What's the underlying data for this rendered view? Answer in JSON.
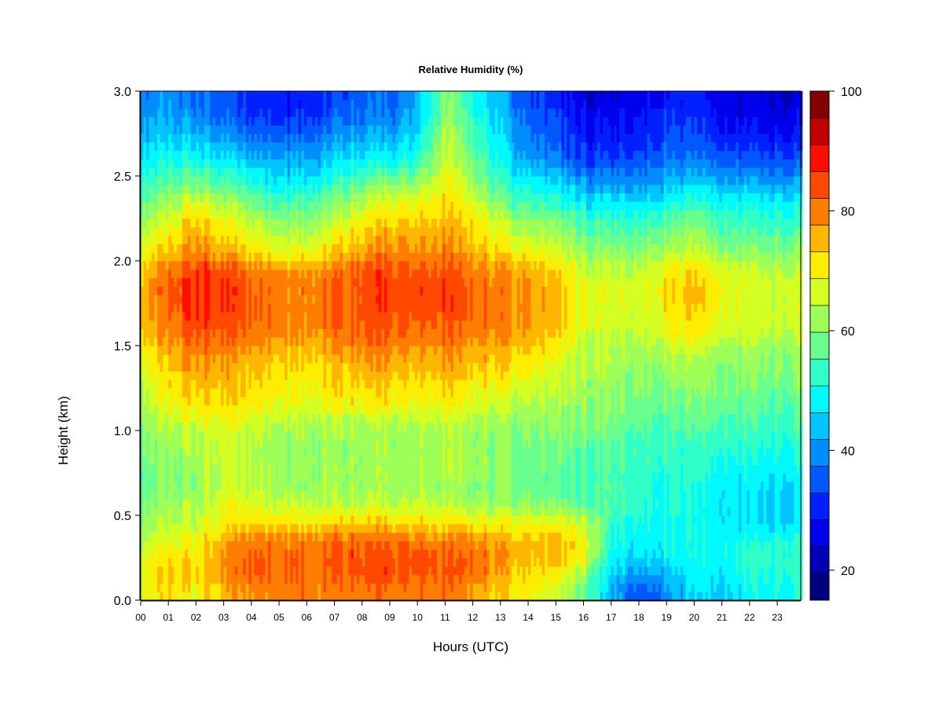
{
  "chart_data": {
    "type": "heatmap",
    "title": "Relative Humidity (%)",
    "xlabel": "Hours (UTC)",
    "ylabel": "Height (km)",
    "x_ticks": [
      "00",
      "01",
      "02",
      "03",
      "04",
      "05",
      "06",
      "07",
      "08",
      "09",
      "10",
      "11",
      "12",
      "13",
      "14",
      "15",
      "16",
      "17",
      "18",
      "19",
      "20",
      "21",
      "22",
      "23"
    ],
    "y_ticks": [
      "0.0",
      "0.5",
      "1.0",
      "1.5",
      "2.0",
      "2.5",
      "3.0"
    ],
    "xlim": [
      0,
      23.85
    ],
    "ylim": [
      0,
      3.0
    ],
    "colorbar": {
      "range": [
        15,
        100
      ],
      "ticks": [
        "20",
        "40",
        "60",
        "80",
        "100"
      ],
      "colors": [
        "#00007f",
        "#0000b5",
        "#0000ec",
        "#0020ff",
        "#0058ff",
        "#008eff",
        "#00c4ff",
        "#00f8ff",
        "#30ffc8",
        "#68ff8f",
        "#9eff58",
        "#d4ff22",
        "#ffed00",
        "#ffb600",
        "#ff7d00",
        "#ff4800",
        "#fd0e00",
        "#c30000",
        "#830000"
      ]
    },
    "heights_km": [
      0.05,
      0.15,
      0.25,
      0.35,
      0.45,
      0.55,
      0.65,
      0.75,
      0.85,
      0.95,
      1.05,
      1.15,
      1.25,
      1.35,
      1.45,
      1.55,
      1.65,
      1.75,
      1.85,
      1.95,
      2.05,
      2.15,
      2.25,
      2.35,
      2.45,
      2.55,
      2.65,
      2.75,
      2.85,
      2.95
    ],
    "hours": [
      0,
      1,
      2,
      3,
      4,
      5,
      6,
      7,
      8,
      9,
      10,
      11,
      12,
      13,
      14,
      15,
      16,
      17,
      18,
      19,
      20,
      21,
      22,
      23
    ],
    "rh": [
      [
        68,
        72,
        70,
        74,
        78,
        80,
        80,
        80,
        80,
        80,
        80,
        80,
        78,
        72,
        70,
        66,
        58,
        42,
        34,
        40,
        46,
        46,
        48,
        50
      ],
      [
        70,
        74,
        74,
        78,
        82,
        82,
        82,
        82,
        84,
        84,
        82,
        84,
        82,
        76,
        72,
        70,
        62,
        44,
        40,
        44,
        48,
        48,
        50,
        52
      ],
      [
        68,
        72,
        72,
        78,
        82,
        82,
        82,
        84,
        84,
        84,
        84,
        84,
        82,
        78,
        74,
        74,
        70,
        48,
        46,
        48,
        50,
        50,
        52,
        52
      ],
      [
        64,
        68,
        70,
        76,
        80,
        80,
        80,
        82,
        82,
        82,
        80,
        80,
        80,
        76,
        74,
        74,
        70,
        50,
        48,
        50,
        50,
        50,
        50,
        52
      ],
      [
        62,
        64,
        66,
        70,
        72,
        72,
        72,
        74,
        74,
        74,
        72,
        72,
        72,
        70,
        70,
        70,
        66,
        52,
        50,
        50,
        50,
        48,
        46,
        46
      ],
      [
        60,
        62,
        64,
        68,
        68,
        66,
        66,
        66,
        66,
        66,
        66,
        66,
        64,
        62,
        62,
        60,
        58,
        54,
        52,
        52,
        50,
        48,
        46,
        46
      ],
      [
        58,
        60,
        62,
        66,
        64,
        62,
        62,
        62,
        62,
        62,
        62,
        62,
        60,
        60,
        58,
        56,
        54,
        54,
        52,
        52,
        50,
        48,
        46,
        46
      ],
      [
        58,
        60,
        62,
        66,
        64,
        62,
        62,
        62,
        62,
        62,
        62,
        64,
        62,
        60,
        58,
        56,
        54,
        54,
        52,
        52,
        52,
        50,
        48,
        48
      ],
      [
        60,
        60,
        64,
        66,
        64,
        62,
        62,
        62,
        62,
        62,
        62,
        64,
        62,
        60,
        58,
        58,
        56,
        54,
        54,
        54,
        52,
        52,
        50,
        50
      ],
      [
        60,
        62,
        64,
        66,
        64,
        62,
        62,
        62,
        62,
        62,
        62,
        64,
        62,
        60,
        60,
        58,
        58,
        56,
        54,
        54,
        54,
        54,
        52,
        52
      ],
      [
        62,
        64,
        68,
        68,
        66,
        64,
        64,
        64,
        64,
        64,
        64,
        66,
        64,
        62,
        60,
        60,
        60,
        58,
        56,
        56,
        56,
        56,
        54,
        54
      ],
      [
        64,
        68,
        72,
        72,
        70,
        68,
        68,
        70,
        70,
        70,
        68,
        70,
        68,
        66,
        64,
        62,
        62,
        60,
        58,
        58,
        58,
        58,
        56,
        56
      ],
      [
        66,
        70,
        74,
        74,
        72,
        70,
        70,
        72,
        72,
        72,
        70,
        72,
        70,
        68,
        66,
        64,
        62,
        60,
        60,
        60,
        60,
        60,
        58,
        58
      ],
      [
        68,
        72,
        78,
        76,
        74,
        72,
        72,
        74,
        76,
        76,
        74,
        76,
        74,
        72,
        70,
        66,
        64,
        62,
        60,
        62,
        62,
        60,
        60,
        60
      ],
      [
        70,
        74,
        80,
        78,
        76,
        74,
        74,
        76,
        78,
        78,
        76,
        78,
        76,
        74,
        72,
        68,
        64,
        62,
        62,
        64,
        64,
        62,
        60,
        60
      ],
      [
        74,
        78,
        84,
        82,
        80,
        78,
        78,
        80,
        82,
        82,
        80,
        82,
        80,
        78,
        76,
        72,
        66,
        64,
        64,
        68,
        70,
        66,
        64,
        64
      ],
      [
        76,
        80,
        86,
        84,
        82,
        80,
        80,
        82,
        84,
        84,
        82,
        84,
        82,
        80,
        78,
        74,
        68,
        66,
        66,
        70,
        72,
        68,
        66,
        66
      ],
      [
        76,
        82,
        88,
        86,
        82,
        80,
        80,
        82,
        84,
        86,
        84,
        86,
        82,
        80,
        78,
        74,
        68,
        66,
        66,
        72,
        74,
        70,
        66,
        66
      ],
      [
        76,
        82,
        88,
        86,
        82,
        80,
        80,
        82,
        84,
        86,
        84,
        86,
        82,
        80,
        78,
        74,
        68,
        66,
        66,
        72,
        74,
        70,
        66,
        66
      ],
      [
        74,
        80,
        86,
        84,
        80,
        78,
        78,
        80,
        84,
        84,
        82,
        84,
        80,
        78,
        76,
        72,
        66,
        64,
        64,
        70,
        72,
        68,
        64,
        64
      ],
      [
        70,
        74,
        80,
        76,
        72,
        68,
        70,
        74,
        78,
        80,
        78,
        80,
        76,
        72,
        70,
        66,
        62,
        60,
        60,
        64,
        66,
        62,
        60,
        60
      ],
      [
        66,
        70,
        78,
        72,
        68,
        64,
        64,
        70,
        74,
        76,
        76,
        78,
        74,
        68,
        64,
        62,
        58,
        56,
        56,
        60,
        62,
        58,
        56,
        56
      ],
      [
        62,
        66,
        74,
        68,
        64,
        60,
        60,
        64,
        70,
        72,
        72,
        74,
        72,
        64,
        60,
        58,
        54,
        52,
        52,
        56,
        58,
        54,
        52,
        52
      ],
      [
        58,
        62,
        68,
        62,
        58,
        54,
        56,
        60,
        64,
        68,
        68,
        72,
        68,
        58,
        54,
        52,
        48,
        46,
        46,
        50,
        52,
        50,
        48,
        48
      ],
      [
        54,
        56,
        60,
        56,
        52,
        48,
        50,
        54,
        58,
        60,
        62,
        70,
        64,
        54,
        50,
        46,
        42,
        40,
        40,
        44,
        46,
        44,
        42,
        42
      ],
      [
        50,
        52,
        54,
        50,
        46,
        44,
        44,
        48,
        52,
        52,
        54,
        68,
        60,
        50,
        44,
        40,
        36,
        34,
        36,
        40,
        40,
        38,
        36,
        36
      ],
      [
        48,
        48,
        48,
        44,
        40,
        40,
        40,
        44,
        46,
        46,
        50,
        66,
        58,
        48,
        40,
        36,
        32,
        30,
        32,
        36,
        36,
        34,
        32,
        32
      ],
      [
        44,
        44,
        44,
        40,
        36,
        36,
        36,
        40,
        42,
        42,
        46,
        64,
        56,
        46,
        38,
        34,
        30,
        28,
        30,
        34,
        34,
        30,
        28,
        28
      ],
      [
        42,
        42,
        40,
        36,
        32,
        32,
        32,
        36,
        38,
        38,
        44,
        62,
        54,
        44,
        36,
        32,
        28,
        26,
        28,
        32,
        32,
        28,
        26,
        26
      ],
      [
        40,
        40,
        38,
        34,
        30,
        30,
        30,
        34,
        36,
        36,
        42,
        60,
        52,
        42,
        34,
        30,
        26,
        24,
        26,
        30,
        30,
        26,
        24,
        24
      ]
    ]
  }
}
